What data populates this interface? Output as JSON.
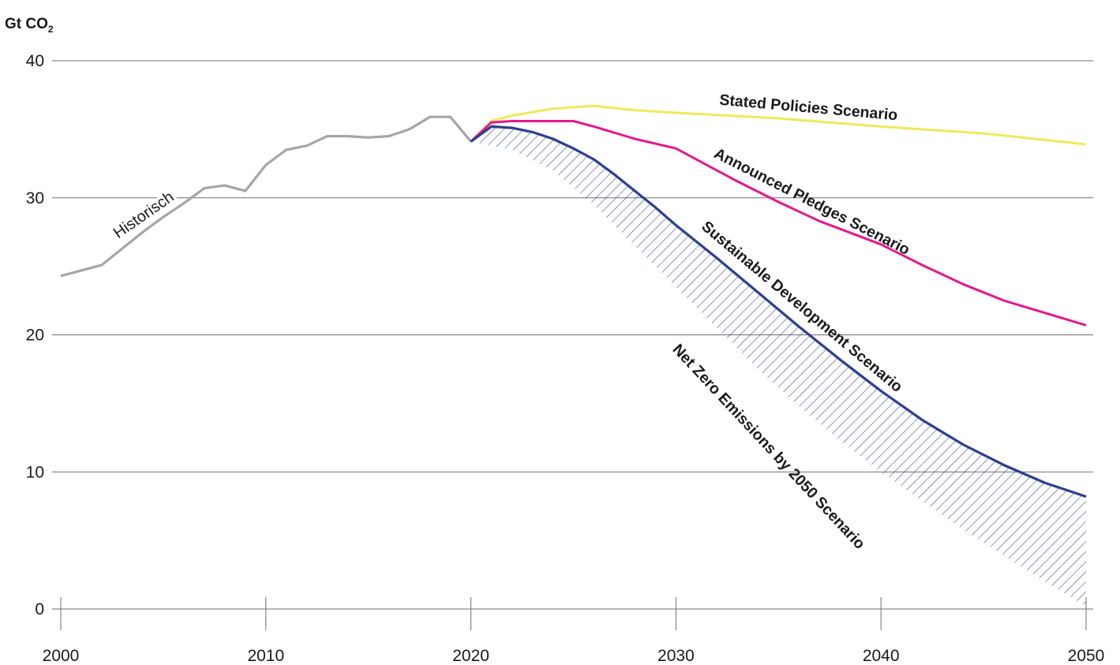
{
  "chart_data": {
    "type": "area",
    "ylabel_main": "Gt CO",
    "ylabel_sub": "2",
    "xlim": [
      2000,
      2050
    ],
    "ylim": [
      0,
      40
    ],
    "x_ticks": [
      "2000",
      "2010",
      "2020",
      "2030",
      "2040",
      "2050"
    ],
    "y_ticks": [
      "0",
      "10",
      "20",
      "30",
      "40"
    ],
    "grid": true,
    "series": [
      {
        "name": "Historisch",
        "color": "#a6a6a6",
        "points": [
          [
            2000,
            24.3
          ],
          [
            2002,
            25.1
          ],
          [
            2004,
            27.5
          ],
          [
            2005,
            28.6
          ],
          [
            2006,
            29.6
          ],
          [
            2007,
            30.7
          ],
          [
            2008,
            30.9
          ],
          [
            2009,
            30.5
          ],
          [
            2010,
            32.4
          ],
          [
            2011,
            33.5
          ],
          [
            2012,
            33.8
          ],
          [
            2013,
            34.5
          ],
          [
            2014,
            34.5
          ],
          [
            2015,
            34.4
          ],
          [
            2016,
            34.5
          ],
          [
            2017,
            35.0
          ],
          [
            2018,
            35.9
          ],
          [
            2019,
            35.9
          ],
          [
            2020,
            34.1
          ]
        ]
      },
      {
        "name": "Stated Policies Scenario",
        "color": "#f0e85a",
        "points": [
          [
            2020,
            34.1
          ],
          [
            2021,
            35.6
          ],
          [
            2022,
            36.0
          ],
          [
            2024,
            36.5
          ],
          [
            2026,
            36.7
          ],
          [
            2028,
            36.4
          ],
          [
            2030,
            36.2
          ],
          [
            2035,
            35.8
          ],
          [
            2040,
            35.2
          ],
          [
            2045,
            34.7
          ],
          [
            2050,
            33.9
          ]
        ]
      },
      {
        "name": "Announced Pledges Scenario",
        "color": "#e4188c",
        "points": [
          [
            2020,
            34.1
          ],
          [
            2021,
            35.5
          ],
          [
            2022,
            35.6
          ],
          [
            2025,
            35.6
          ],
          [
            2026,
            35.2
          ],
          [
            2028,
            34.3
          ],
          [
            2030,
            33.6
          ],
          [
            2033,
            31.2
          ],
          [
            2035,
            29.7
          ],
          [
            2037,
            28.3
          ],
          [
            2040,
            26.6
          ],
          [
            2042,
            25.1
          ],
          [
            2044,
            23.7
          ],
          [
            2046,
            22.5
          ],
          [
            2048,
            21.6
          ],
          [
            2050,
            20.7
          ]
        ]
      },
      {
        "name": "Sustainable Development Scenario",
        "color": "#2e3f8f",
        "points": [
          [
            2020,
            34.1
          ],
          [
            2021,
            35.2
          ],
          [
            2022,
            35.1
          ],
          [
            2023,
            34.8
          ],
          [
            2024,
            34.3
          ],
          [
            2025,
            33.6
          ],
          [
            2026,
            32.8
          ],
          [
            2027,
            31.7
          ],
          [
            2028,
            30.5
          ],
          [
            2029,
            29.3
          ],
          [
            2030,
            28.0
          ],
          [
            2032,
            25.6
          ],
          [
            2034,
            23.1
          ],
          [
            2036,
            20.6
          ],
          [
            2038,
            18.2
          ],
          [
            2040,
            15.9
          ],
          [
            2042,
            13.8
          ],
          [
            2044,
            12.0
          ],
          [
            2046,
            10.5
          ],
          [
            2048,
            9.2
          ],
          [
            2050,
            8.2
          ]
        ]
      },
      {
        "name": "Net Zero Emissions by 2050 Scenario",
        "color": "#2e3f8f",
        "points": [
          [
            2020,
            34.1
          ],
          [
            2022,
            33.5
          ],
          [
            2024,
            32.0
          ],
          [
            2026,
            29.5
          ],
          [
            2028,
            26.5
          ],
          [
            2030,
            23.5
          ],
          [
            2032,
            20.5
          ],
          [
            2034,
            17.5
          ],
          [
            2036,
            14.8
          ],
          [
            2038,
            12.3
          ],
          [
            2040,
            10.0
          ],
          [
            2042,
            7.9
          ],
          [
            2044,
            5.8
          ],
          [
            2046,
            3.9
          ],
          [
            2048,
            2.0
          ],
          [
            2049,
            1.1
          ],
          [
            2050,
            0.2
          ]
        ]
      }
    ]
  }
}
